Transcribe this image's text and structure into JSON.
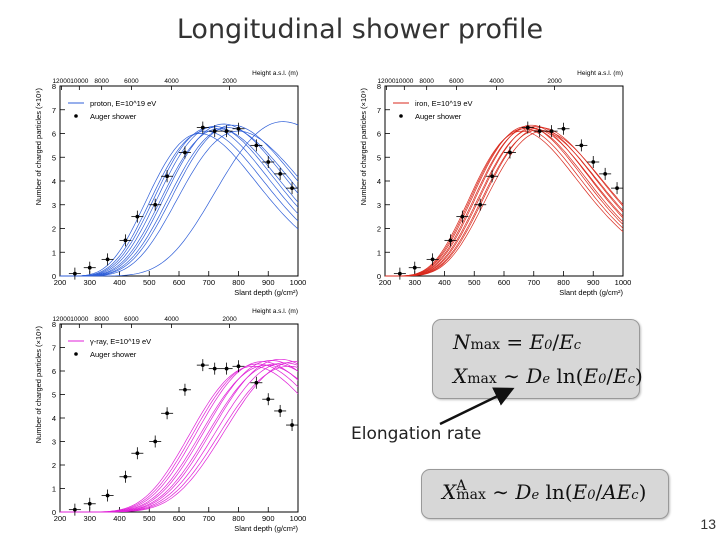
{
  "slide": {
    "title": "Longitudinal shower profile",
    "page_number": "13",
    "elongation_label": "Elongation rate",
    "formulas": {
      "nmax": "Nmax = E0/Ec",
      "xmax": "Xmax ~ De ln(E0/Ec)",
      "xmax_a": "XAmax ~ De ln(E0/AEc)"
    }
  },
  "chart_data": [
    {
      "type": "line",
      "name": "proton",
      "legend": [
        "proton, E=10^19 eV",
        "Auger shower"
      ],
      "xlabel": "Slant depth (g/cm²)",
      "ylabel": "Number of charged particles (×10⁹)",
      "top_axis_label": "Height a.s.l. (m)",
      "top_ticks": [
        "12000",
        "10000",
        "8000",
        "6000",
        "4000",
        "2000"
      ],
      "top_tick_depths": [
        205,
        265,
        340,
        440,
        575,
        770
      ],
      "xlim": [
        200,
        1000
      ],
      "ylim": [
        0,
        8
      ],
      "x_ticks": [
        200,
        300,
        400,
        500,
        600,
        700,
        800,
        900,
        1000
      ],
      "y_ticks": [
        0,
        1,
        2,
        3,
        4,
        5,
        6,
        7,
        8
      ],
      "series_color": "#2f5fd8",
      "simulated_showers": [
        {
          "xmax": 670,
          "nmax": 6.0
        },
        {
          "xmax": 690,
          "nmax": 6.1
        },
        {
          "xmax": 705,
          "nmax": 6.25
        },
        {
          "xmax": 720,
          "nmax": 6.3
        },
        {
          "xmax": 735,
          "nmax": 6.2
        },
        {
          "xmax": 750,
          "nmax": 6.4
        },
        {
          "xmax": 765,
          "nmax": 6.25
        },
        {
          "xmax": 780,
          "nmax": 6.35
        },
        {
          "xmax": 800,
          "nmax": 6.1
        },
        {
          "xmax": 950,
          "nmax": 6.5
        }
      ],
      "auger_points": [
        {
          "x": 250,
          "y": 0.1
        },
        {
          "x": 300,
          "y": 0.35
        },
        {
          "x": 360,
          "y": 0.7
        },
        {
          "x": 420,
          "y": 1.5
        },
        {
          "x": 460,
          "y": 2.5
        },
        {
          "x": 520,
          "y": 3.0
        },
        {
          "x": 560,
          "y": 4.2
        },
        {
          "x": 620,
          "y": 5.2
        },
        {
          "x": 680,
          "y": 6.25
        },
        {
          "x": 720,
          "y": 6.1
        },
        {
          "x": 760,
          "y": 6.1
        },
        {
          "x": 800,
          "y": 6.2
        },
        {
          "x": 860,
          "y": 5.5
        },
        {
          "x": 900,
          "y": 4.8
        },
        {
          "x": 940,
          "y": 4.3
        },
        {
          "x": 980,
          "y": 3.7
        }
      ]
    },
    {
      "type": "line",
      "name": "iron",
      "legend": [
        "iron, E=10^19 eV",
        "Auger shower"
      ],
      "xlabel": "Slant depth (g/cm²)",
      "ylabel": "Number of charged particles (×10⁹)",
      "top_axis_label": "Height a.s.l. (m)",
      "top_ticks": [
        "12000",
        "10000",
        "8000",
        "6000",
        "4000",
        "2000"
      ],
      "top_tick_depths": [
        205,
        265,
        340,
        440,
        575,
        770
      ],
      "xlim": [
        200,
        1000
      ],
      "ylim": [
        0,
        8
      ],
      "x_ticks": [
        200,
        300,
        400,
        500,
        600,
        700,
        800,
        900,
        1000
      ],
      "y_ticks": [
        0,
        1,
        2,
        3,
        4,
        5,
        6,
        7,
        8
      ],
      "series_color": "#d9281c",
      "simulated_showers": [
        {
          "xmax": 660,
          "nmax": 6.1
        },
        {
          "xmax": 668,
          "nmax": 6.2
        },
        {
          "xmax": 676,
          "nmax": 6.3
        },
        {
          "xmax": 684,
          "nmax": 6.25
        },
        {
          "xmax": 692,
          "nmax": 6.35
        },
        {
          "xmax": 700,
          "nmax": 6.2
        },
        {
          "xmax": 708,
          "nmax": 6.3
        },
        {
          "xmax": 716,
          "nmax": 6.15
        },
        {
          "xmax": 724,
          "nmax": 6.25
        },
        {
          "xmax": 732,
          "nmax": 6.1
        }
      ],
      "auger_points": [
        {
          "x": 250,
          "y": 0.1
        },
        {
          "x": 300,
          "y": 0.35
        },
        {
          "x": 360,
          "y": 0.7
        },
        {
          "x": 420,
          "y": 1.5
        },
        {
          "x": 460,
          "y": 2.5
        },
        {
          "x": 520,
          "y": 3.0
        },
        {
          "x": 560,
          "y": 4.2
        },
        {
          "x": 620,
          "y": 5.2
        },
        {
          "x": 680,
          "y": 6.25
        },
        {
          "x": 720,
          "y": 6.1
        },
        {
          "x": 760,
          "y": 6.1
        },
        {
          "x": 800,
          "y": 6.2
        },
        {
          "x": 860,
          "y": 5.5
        },
        {
          "x": 900,
          "y": 4.8
        },
        {
          "x": 940,
          "y": 4.3
        },
        {
          "x": 980,
          "y": 3.7
        }
      ]
    },
    {
      "type": "line",
      "name": "gamma",
      "legend": [
        "γ-ray, E=10^19 eV",
        "Auger shower"
      ],
      "xlabel": "Slant depth (g/cm²)",
      "ylabel": "Number of charged particles (×10⁹)",
      "top_axis_label": "Height a.s.l. (m)",
      "top_ticks": [
        "12000",
        "10000",
        "8000",
        "6000",
        "4000",
        "2000"
      ],
      "top_tick_depths": [
        205,
        265,
        340,
        440,
        575,
        770
      ],
      "xlim": [
        200,
        1000
      ],
      "ylim": [
        0,
        8
      ],
      "x_ticks": [
        200,
        300,
        400,
        500,
        600,
        700,
        800,
        900,
        1000
      ],
      "y_ticks": [
        0,
        1,
        2,
        3,
        4,
        5,
        6,
        7,
        8
      ],
      "series_color": "#e020d8",
      "simulated_showers": [
        {
          "xmax": 850,
          "nmax": 6.2
        },
        {
          "xmax": 865,
          "nmax": 6.3
        },
        {
          "xmax": 880,
          "nmax": 6.4
        },
        {
          "xmax": 895,
          "nmax": 6.25
        },
        {
          "xmax": 910,
          "nmax": 6.45
        },
        {
          "xmax": 925,
          "nmax": 6.3
        },
        {
          "xmax": 940,
          "nmax": 6.5
        },
        {
          "xmax": 955,
          "nmax": 6.35
        },
        {
          "xmax": 970,
          "nmax": 6.2
        },
        {
          "xmax": 990,
          "nmax": 6.4
        }
      ],
      "auger_points": [
        {
          "x": 250,
          "y": 0.1
        },
        {
          "x": 300,
          "y": 0.35
        },
        {
          "x": 360,
          "y": 0.7
        },
        {
          "x": 420,
          "y": 1.5
        },
        {
          "x": 460,
          "y": 2.5
        },
        {
          "x": 520,
          "y": 3.0
        },
        {
          "x": 560,
          "y": 4.2
        },
        {
          "x": 620,
          "y": 5.2
        },
        {
          "x": 680,
          "y": 6.25
        },
        {
          "x": 720,
          "y": 6.1
        },
        {
          "x": 760,
          "y": 6.1
        },
        {
          "x": 800,
          "y": 6.2
        },
        {
          "x": 860,
          "y": 5.5
        },
        {
          "x": 900,
          "y": 4.8
        },
        {
          "x": 940,
          "y": 4.3
        },
        {
          "x": 980,
          "y": 3.7
        }
      ]
    }
  ]
}
